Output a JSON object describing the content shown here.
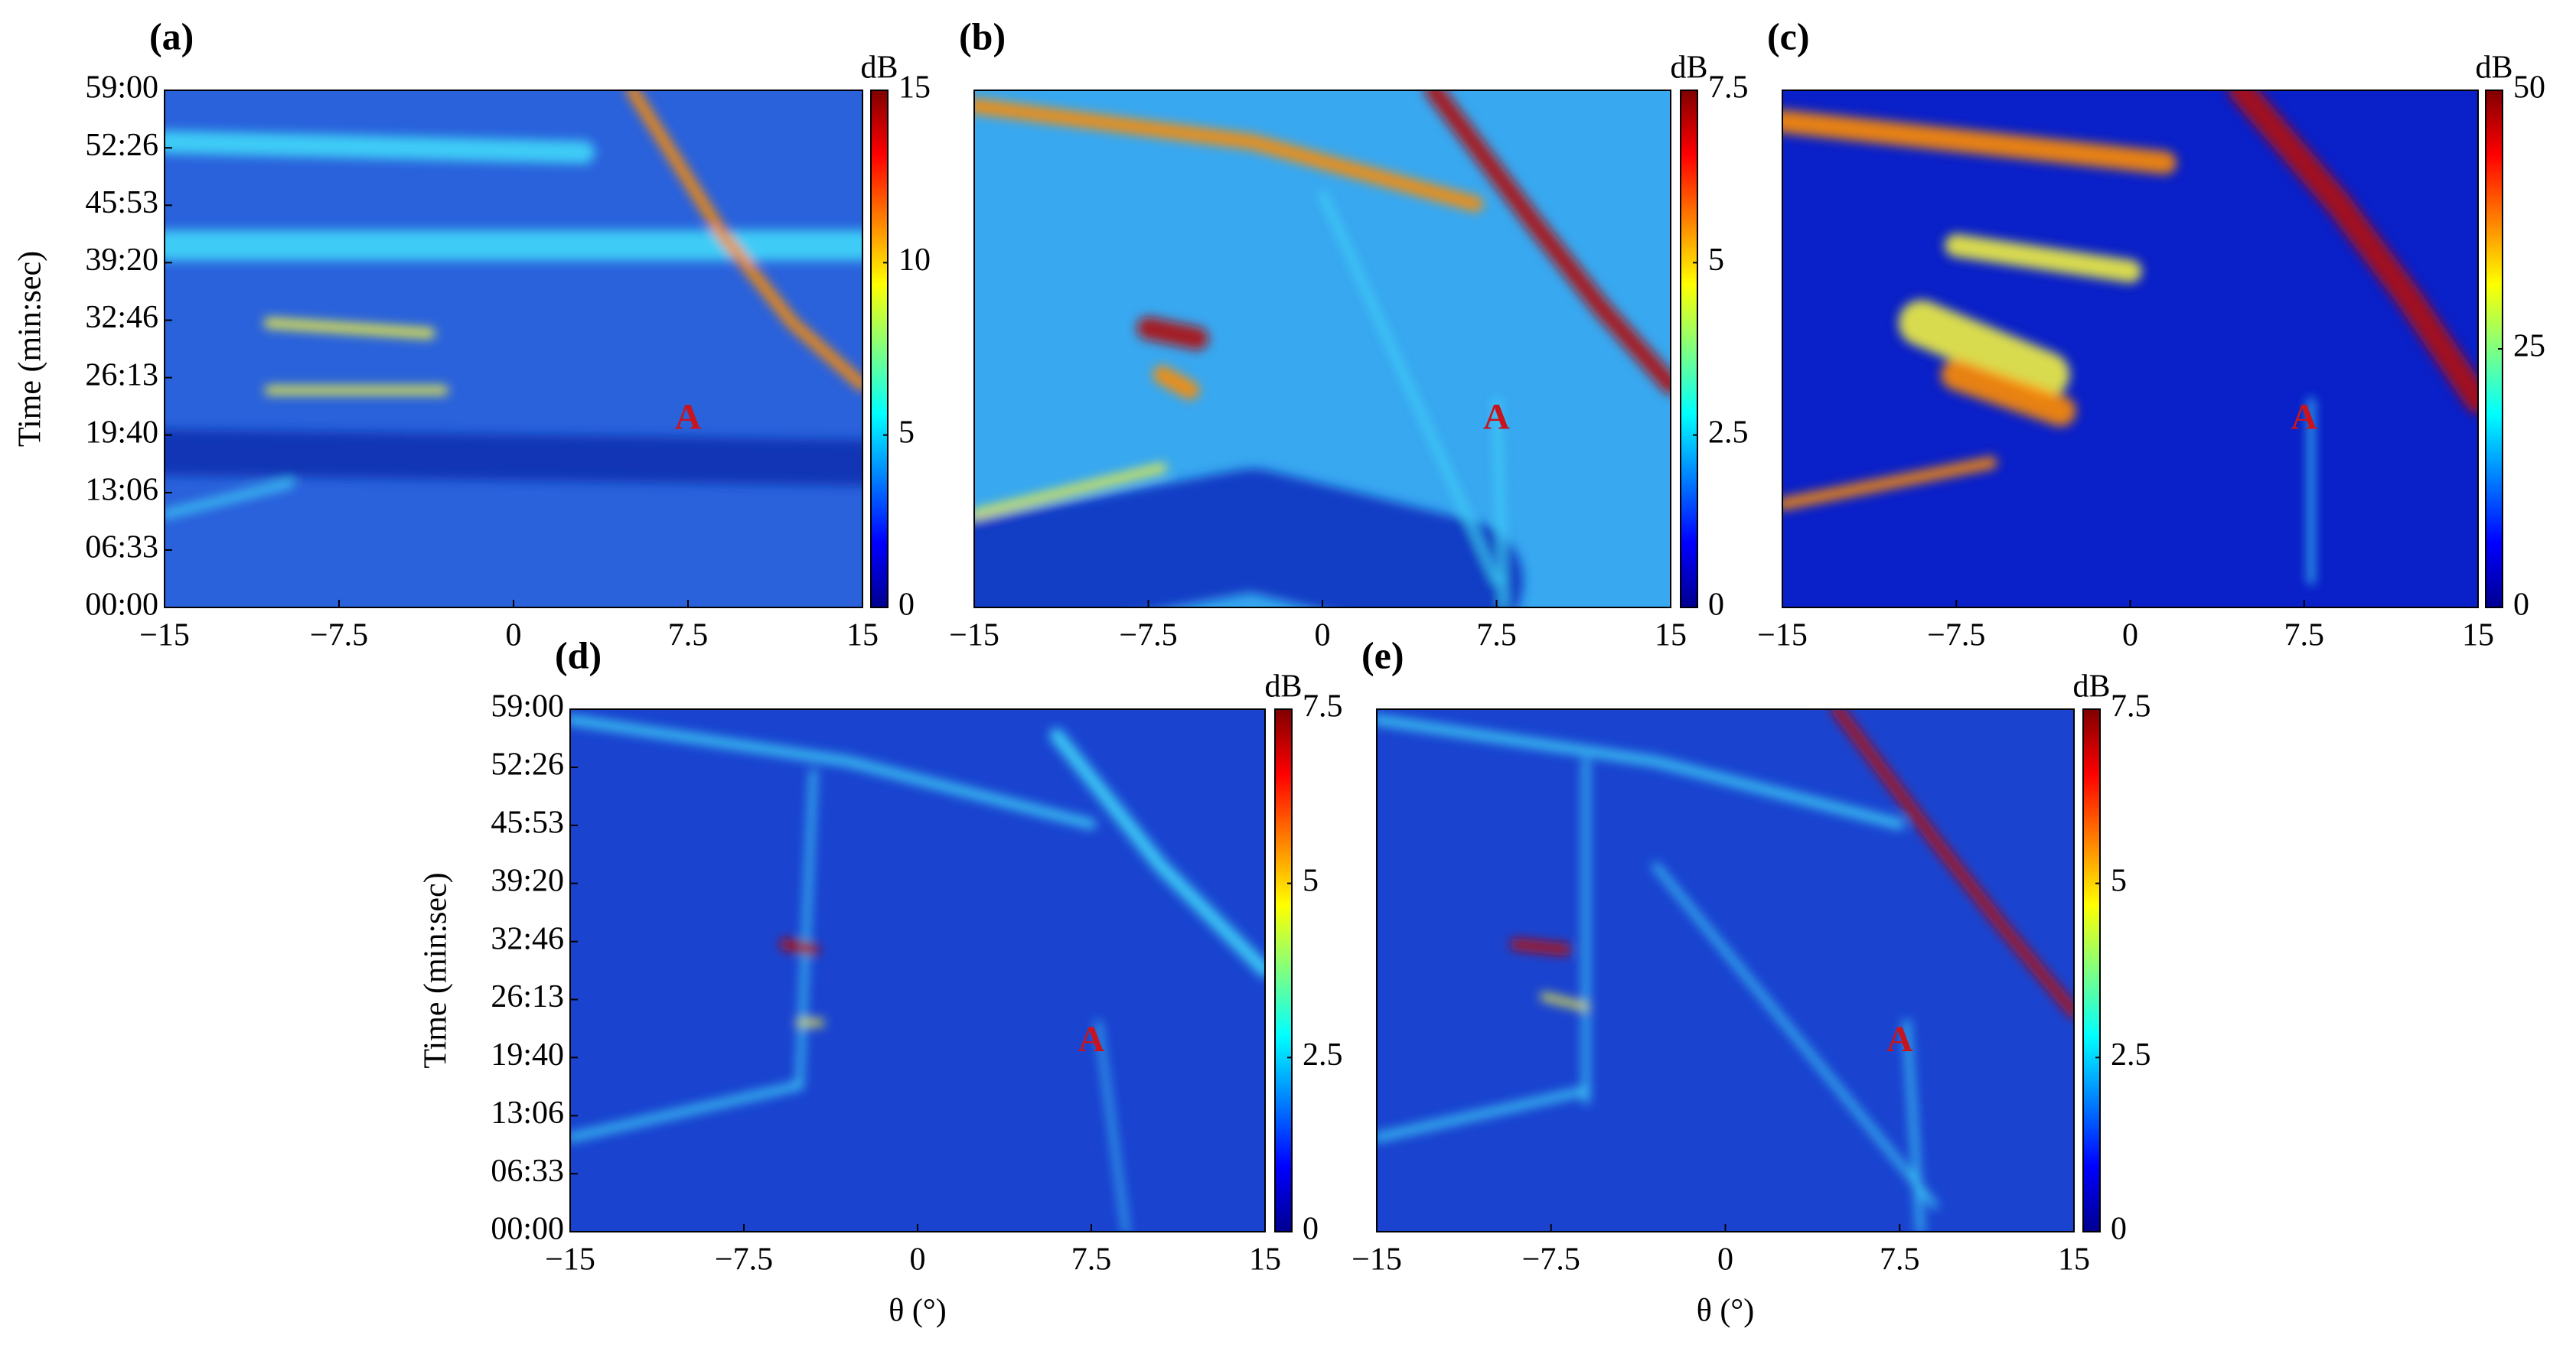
{
  "chart_data": [
    {
      "type": "heatmap",
      "panel_label": "(a)",
      "ylabel": "Time (min:sec)",
      "xlim": [
        -15,
        15
      ],
      "xticks": [
        {
          "value": -15,
          "label": "−15"
        },
        {
          "value": -7.5,
          "label": "−7.5"
        },
        0,
        7.5,
        15
      ],
      "ylim": [
        0,
        3540
      ],
      "yticks": [
        {
          "value": 0,
          "label": "00:00"
        },
        {
          "value": 393,
          "label": "06:33"
        },
        {
          "value": 786,
          "label": "13:06"
        },
        {
          "value": 1180,
          "label": "19:40"
        },
        {
          "value": 1573,
          "label": "26:13"
        },
        {
          "value": 1966,
          "label": "32:46"
        },
        {
          "value": 2360,
          "label": "39:20"
        },
        {
          "value": 2753,
          "label": "45:53"
        },
        {
          "value": 3146,
          "label": "52:26"
        },
        {
          "value": 3540,
          "label": "59:00"
        }
      ],
      "colorbar": {
        "label": "dB",
        "lim": [
          0,
          15
        ],
        "ticks": [
          0,
          5,
          10,
          15
        ]
      },
      "annotations": [
        {
          "text": "A",
          "x": 7.5,
          "y": 1280
        }
      ]
    },
    {
      "type": "heatmap",
      "panel_label": "(b)",
      "xlim": [
        -15,
        15
      ],
      "xticks": [
        {
          "value": -15,
          "label": "−15"
        },
        {
          "value": -7.5,
          "label": "−7.5"
        },
        0,
        7.5,
        15
      ],
      "ylim": [
        0,
        3540
      ],
      "colorbar": {
        "label": "dB",
        "lim": [
          0,
          7.5
        ],
        "ticks": [
          0,
          2.5,
          5,
          7.5
        ]
      },
      "annotations": [
        {
          "text": "A",
          "x": 7.5,
          "y": 1280
        }
      ]
    },
    {
      "type": "heatmap",
      "panel_label": "(c)",
      "xlim": [
        -15,
        15
      ],
      "xticks": [
        {
          "value": -15,
          "label": "−15"
        },
        {
          "value": -7.5,
          "label": "−7.5"
        },
        0,
        7.5,
        15
      ],
      "ylim": [
        0,
        3540
      ],
      "colorbar": {
        "label": "dB",
        "lim": [
          0,
          50
        ],
        "ticks": [
          0,
          25,
          50
        ]
      },
      "annotations": [
        {
          "text": "A",
          "x": 7.5,
          "y": 1280
        }
      ]
    },
    {
      "type": "heatmap",
      "panel_label": "(d)",
      "ylabel": "Time (min:sec)",
      "xlabel": "θ (°)",
      "xlim": [
        -15,
        15
      ],
      "xticks": [
        {
          "value": -15,
          "label": "−15"
        },
        {
          "value": -7.5,
          "label": "−7.5"
        },
        0,
        7.5,
        15
      ],
      "ylim": [
        0,
        3540
      ],
      "yticks": [
        {
          "value": 0,
          "label": "00:00"
        },
        {
          "value": 393,
          "label": "06:33"
        },
        {
          "value": 786,
          "label": "13:06"
        },
        {
          "value": 1180,
          "label": "19:40"
        },
        {
          "value": 1573,
          "label": "26:13"
        },
        {
          "value": 1966,
          "label": "32:46"
        },
        {
          "value": 2360,
          "label": "39:20"
        },
        {
          "value": 2753,
          "label": "45:53"
        },
        {
          "value": 3146,
          "label": "52:26"
        },
        {
          "value": 3540,
          "label": "59:00"
        }
      ],
      "colorbar": {
        "label": "dB",
        "lim": [
          0,
          7.5
        ],
        "ticks": [
          0,
          2.5,
          5,
          7.5
        ]
      },
      "annotations": [
        {
          "text": "A",
          "x": 7.5,
          "y": 1280
        }
      ]
    },
    {
      "type": "heatmap",
      "panel_label": "(e)",
      "xlabel": "θ (°)",
      "xlim": [
        -15,
        15
      ],
      "xticks": [
        {
          "value": -15,
          "label": "−15"
        },
        {
          "value": -7.5,
          "label": "−7.5"
        },
        0,
        7.5,
        15
      ],
      "ylim": [
        0,
        3540
      ],
      "colorbar": {
        "label": "dB",
        "lim": [
          0,
          7.5
        ],
        "ticks": [
          0,
          2.5,
          5,
          7.5
        ]
      },
      "annotations": [
        {
          "text": "A",
          "x": 7.5,
          "y": 1280
        }
      ]
    }
  ]
}
